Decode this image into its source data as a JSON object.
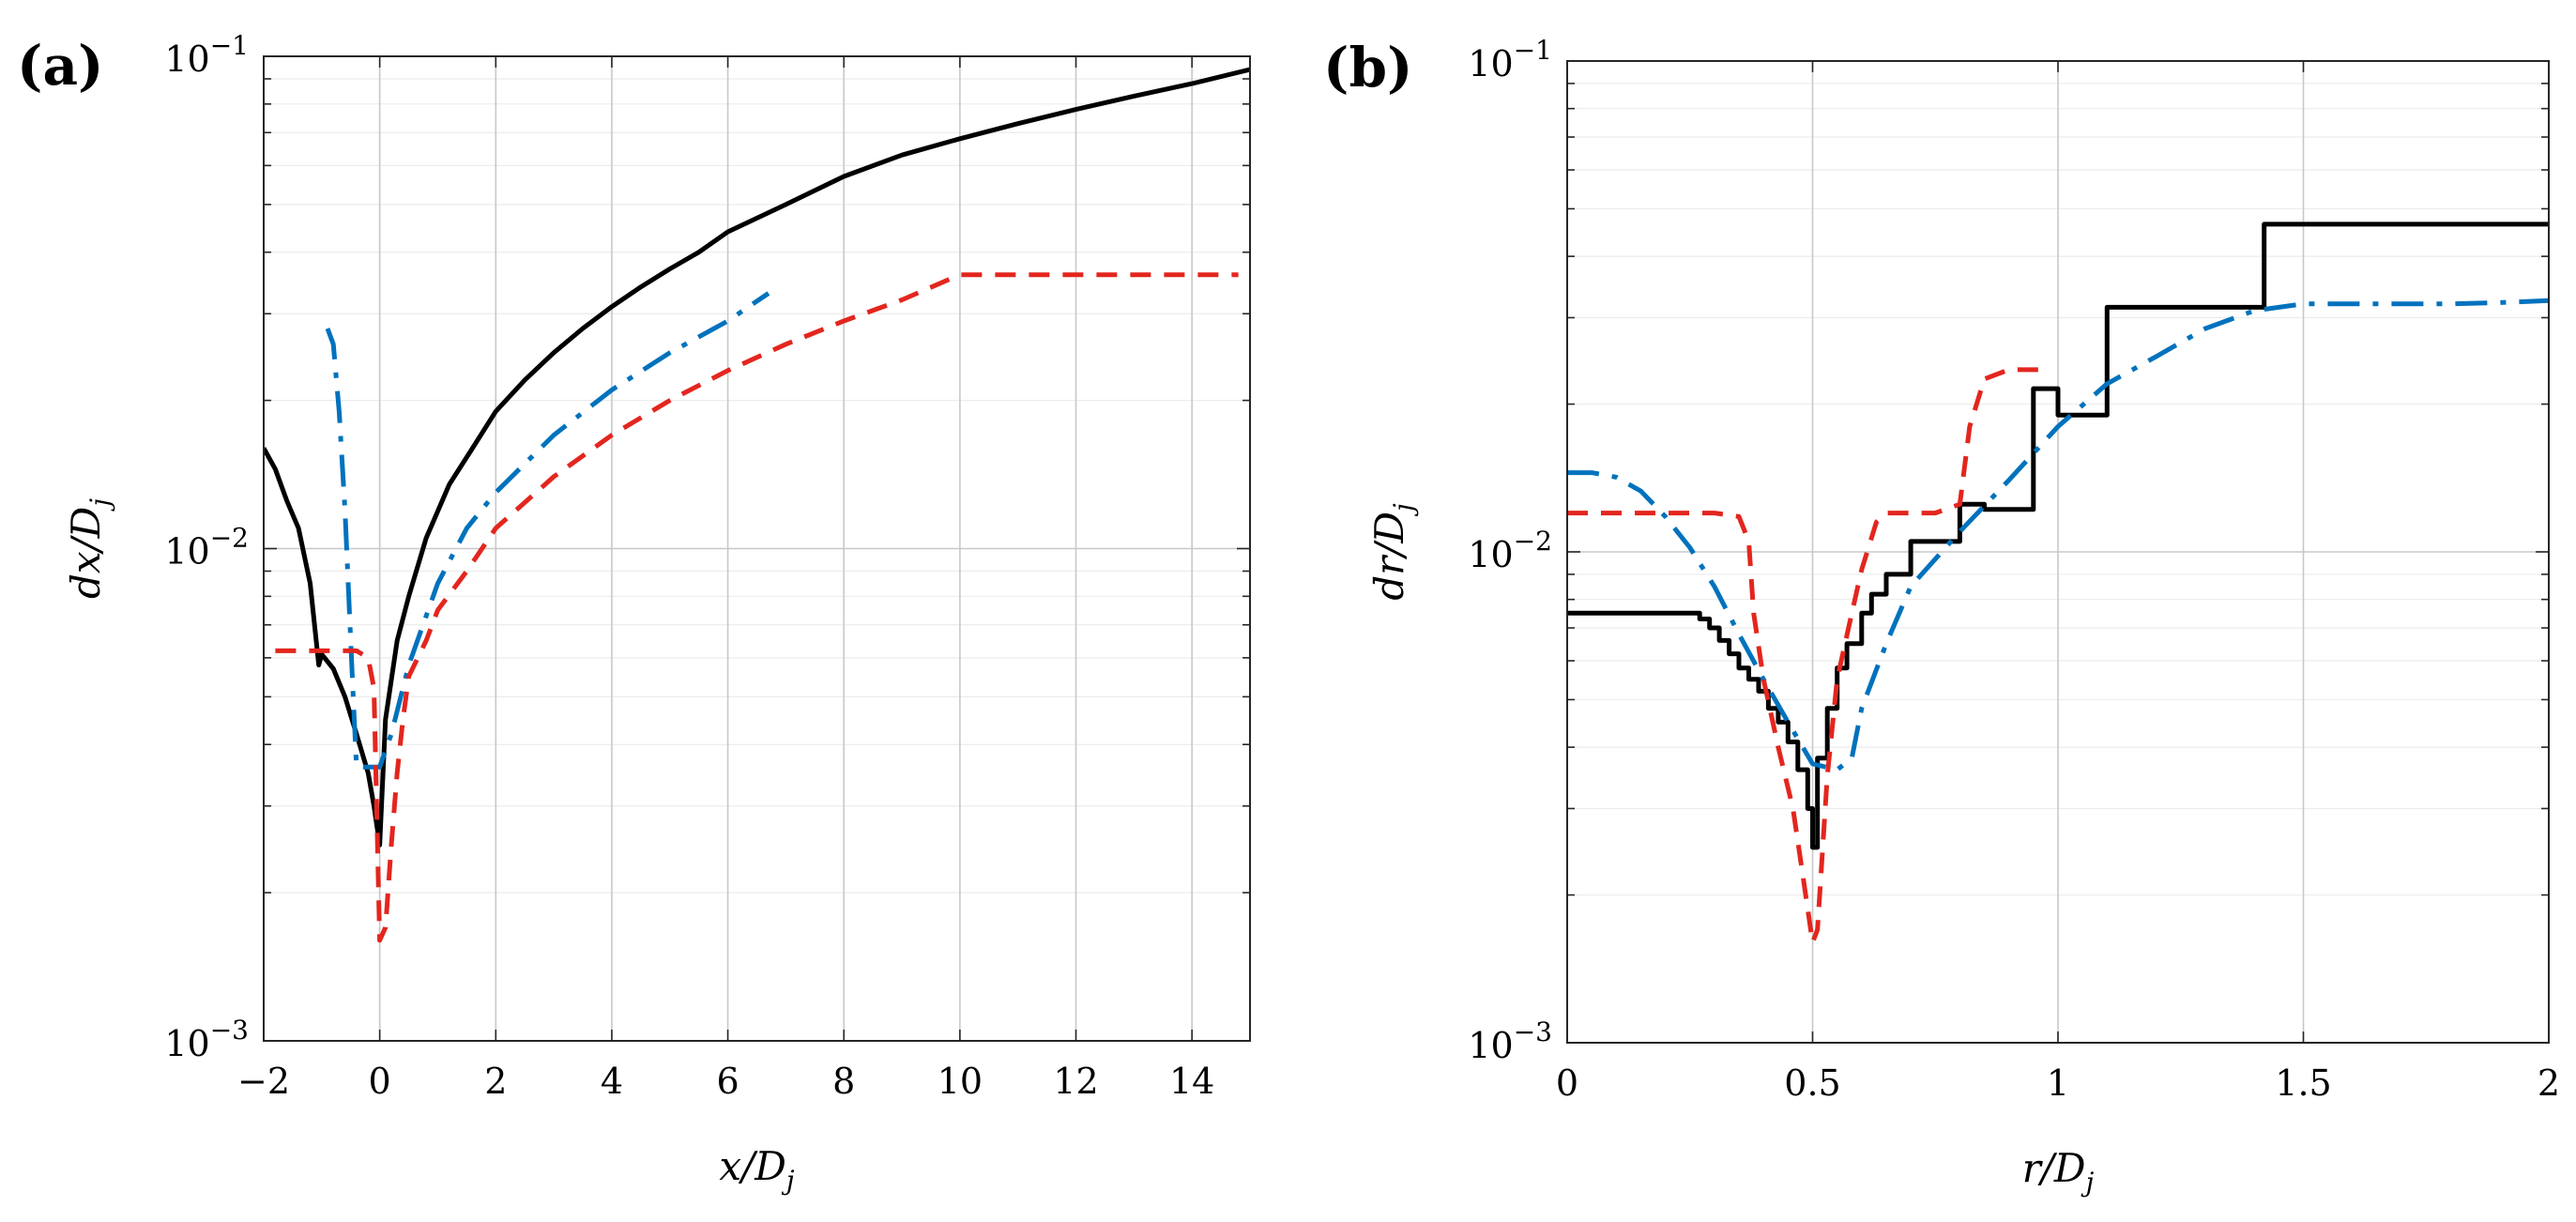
{
  "chart_data": [
    {
      "id": "a",
      "panel_label": "(a)",
      "type": "line",
      "xscale": "linear",
      "yscale": "log",
      "xlim": [
        -2,
        15
      ],
      "ylim": [
        0.001,
        0.1
      ],
      "xticks": [
        -2,
        0,
        2,
        4,
        6,
        8,
        10,
        12,
        14
      ],
      "xtick_labels": [
        "−2",
        "0",
        "2",
        "4",
        "6",
        "8",
        "10",
        "12",
        "14"
      ],
      "ytick_labels": [
        {
          "base": "10",
          "exp": "−1",
          "value": 0.1
        },
        {
          "base": "10",
          "exp": "−2",
          "value": 0.01
        },
        {
          "base": "10",
          "exp": "−3",
          "value": 0.001
        }
      ],
      "xlabel": {
        "main": "x/D",
        "sub": "j"
      },
      "ylabel": {
        "main": "dx/D",
        "sub": "j"
      },
      "grid": true,
      "series": [
        {
          "name": "black-solid",
          "color": "#000000",
          "style": "solid",
          "x": [
            -2,
            -1.8,
            -1.6,
            -1.4,
            -1.2,
            -1.05,
            -1.0,
            -0.8,
            -0.6,
            -0.4,
            -0.2,
            -0.1,
            0,
            0.1,
            0.3,
            0.5,
            0.8,
            1.2,
            1.6,
            2,
            2.5,
            3,
            3.5,
            4,
            4.5,
            5,
            5.5,
            6,
            7,
            8,
            9,
            10,
            11,
            12,
            13,
            14,
            15
          ],
          "y": [
            0.016,
            0.0145,
            0.0125,
            0.011,
            0.0085,
            0.0058,
            0.0061,
            0.0057,
            0.005,
            0.0042,
            0.0035,
            0.003,
            0.0025,
            0.0045,
            0.0065,
            0.008,
            0.0105,
            0.0135,
            0.016,
            0.019,
            0.022,
            0.025,
            0.028,
            0.031,
            0.034,
            0.037,
            0.04,
            0.044,
            0.05,
            0.057,
            0.063,
            0.068,
            0.073,
            0.078,
            0.083,
            0.088,
            0.094
          ]
        },
        {
          "name": "blue-dashdot",
          "color": "#0072BD",
          "style": "dashdot",
          "x": [
            -0.9,
            -0.8,
            -0.7,
            -0.6,
            -0.5,
            -0.45,
            -0.4,
            -0.2,
            0.0,
            0.2,
            0.5,
            1.0,
            1.5,
            2,
            3,
            4,
            5,
            6,
            6.7
          ],
          "y": [
            0.028,
            0.026,
            0.019,
            0.012,
            0.0065,
            0.0048,
            0.0036,
            0.0036,
            0.0036,
            0.0042,
            0.0058,
            0.0085,
            0.011,
            0.013,
            0.017,
            0.021,
            0.025,
            0.029,
            0.033
          ]
        },
        {
          "name": "red-dashed",
          "color": "#E3261E",
          "style": "dashed",
          "x": [
            -1.8,
            -1.5,
            -1.0,
            -0.8,
            -0.6,
            -0.4,
            -0.2,
            -0.1,
            0,
            0.1,
            0.2,
            0.3,
            0.4,
            0.5,
            0.8,
            1,
            1.5,
            2,
            3,
            4,
            5,
            6,
            7,
            8,
            9,
            10,
            11,
            12,
            13,
            14,
            14.8
          ],
          "y": [
            0.0062,
            0.0062,
            0.0062,
            0.0062,
            0.0062,
            0.0062,
            0.006,
            0.0052,
            0.0016,
            0.0017,
            0.0025,
            0.0035,
            0.0045,
            0.0055,
            0.0065,
            0.0075,
            0.009,
            0.011,
            0.014,
            0.017,
            0.02,
            0.023,
            0.026,
            0.029,
            0.032,
            0.036,
            0.036,
            0.036,
            0.036,
            0.036,
            0.036
          ]
        }
      ]
    },
    {
      "id": "b",
      "panel_label": "(b)",
      "type": "line",
      "xscale": "linear",
      "yscale": "log",
      "xlim": [
        0,
        2
      ],
      "ylim": [
        0.001,
        0.1
      ],
      "xticks": [
        0,
        0.5,
        1,
        1.5,
        2
      ],
      "xtick_labels": [
        "0",
        "0.5",
        "1",
        "1.5",
        "2"
      ],
      "ytick_labels": [
        {
          "base": "10",
          "exp": "−1",
          "value": 0.1
        },
        {
          "base": "10",
          "exp": "−2",
          "value": 0.01
        },
        {
          "base": "10",
          "exp": "−3",
          "value": 0.001
        }
      ],
      "xlabel": {
        "main": "r/D",
        "sub": "j"
      },
      "ylabel": {
        "main": "dr/D",
        "sub": "j"
      },
      "grid": true,
      "series": [
        {
          "name": "black-solid",
          "color": "#000000",
          "style": "step",
          "x": [
            0,
            0.25,
            0.27,
            0.29,
            0.31,
            0.33,
            0.35,
            0.37,
            0.39,
            0.41,
            0.43,
            0.45,
            0.47,
            0.49,
            0.5,
            0.51,
            0.53,
            0.55,
            0.57,
            0.6,
            0.62,
            0.65,
            0.7,
            0.75,
            0.8,
            0.85,
            0.95,
            1.0,
            1.1,
            1.42,
            2.0
          ],
          "y": [
            0.0075,
            0.0075,
            0.0073,
            0.007,
            0.0066,
            0.0062,
            0.0058,
            0.0055,
            0.0052,
            0.0048,
            0.0045,
            0.0041,
            0.0036,
            0.003,
            0.0025,
            0.0038,
            0.0048,
            0.0058,
            0.0065,
            0.0075,
            0.0082,
            0.009,
            0.0105,
            0.0105,
            0.0125,
            0.0122,
            0.0215,
            0.019,
            0.0315,
            0.0465,
            0.0465
          ]
        },
        {
          "name": "blue-dashdot",
          "color": "#0072BD",
          "style": "dashdot",
          "x": [
            0,
            0.05,
            0.1,
            0.15,
            0.2,
            0.25,
            0.3,
            0.35,
            0.4,
            0.45,
            0.5,
            0.55,
            0.58,
            0.6,
            0.65,
            0.7,
            0.8,
            0.9,
            1.0,
            1.1,
            1.2,
            1.3,
            1.4,
            1.5,
            1.6,
            1.7,
            1.8,
            1.9,
            2.0
          ],
          "y": [
            0.0145,
            0.0145,
            0.0142,
            0.0133,
            0.0118,
            0.0102,
            0.0085,
            0.0068,
            0.0055,
            0.0045,
            0.0037,
            0.0036,
            0.0038,
            0.0048,
            0.0065,
            0.0085,
            0.011,
            0.014,
            0.018,
            0.022,
            0.025,
            0.0285,
            0.031,
            0.032,
            0.032,
            0.032,
            0.032,
            0.0322,
            0.0325
          ]
        },
        {
          "name": "red-dashed",
          "color": "#E3261E",
          "style": "dashed",
          "x": [
            0,
            0.1,
            0.2,
            0.3,
            0.35,
            0.37,
            0.38,
            0.4,
            0.43,
            0.46,
            0.48,
            0.5,
            0.51,
            0.53,
            0.55,
            0.58,
            0.6,
            0.63,
            0.65,
            0.7,
            0.75,
            0.8,
            0.82,
            0.85,
            0.9,
            0.95,
            0.97
          ],
          "y": [
            0.012,
            0.012,
            0.012,
            0.012,
            0.0118,
            0.0105,
            0.0075,
            0.0055,
            0.004,
            0.003,
            0.0022,
            0.0016,
            0.0017,
            0.0035,
            0.0055,
            0.0075,
            0.0092,
            0.0115,
            0.012,
            0.012,
            0.012,
            0.0125,
            0.018,
            0.0225,
            0.0235,
            0.0235,
            0.0235
          ]
        }
      ]
    }
  ]
}
